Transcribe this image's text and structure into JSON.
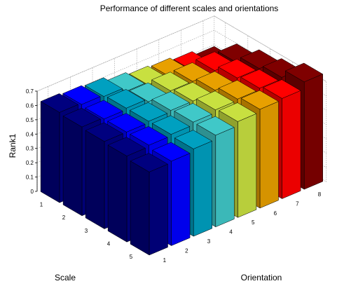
{
  "chart_data": {
    "type": "bar",
    "title": "Performance of different scales and orientations",
    "zlabel": "Rank1",
    "xlabel": "Orientation",
    "ylabel": "Scale",
    "zlim": [
      0,
      0.7
    ],
    "z_ticks": [
      "0",
      "0.1",
      "0.2",
      "0.3",
      "0.4",
      "0.5",
      "0.6",
      "0.7"
    ],
    "orientations": [
      "1",
      "2",
      "3",
      "4",
      "5",
      "6",
      "7",
      "8"
    ],
    "scales": [
      "1",
      "2",
      "3",
      "4",
      "5"
    ],
    "grid": true,
    "colors": [
      "#00007F",
      "#0000FF",
      "#00A0C0",
      "#40C8C8",
      "#C8E040",
      "#E8A000",
      "#FF0000",
      "#7F0000"
    ],
    "values": [
      [
        0.63,
        0.62,
        0.61,
        0.58,
        0.56,
        0.55,
        0.53,
        0.5
      ],
      [
        0.62,
        0.61,
        0.62,
        0.6,
        0.61,
        0.61,
        0.62,
        0.61
      ],
      [
        0.61,
        0.61,
        0.62,
        0.63,
        0.63,
        0.64,
        0.66,
        0.66
      ],
      [
        0.6,
        0.61,
        0.62,
        0.64,
        0.66,
        0.67,
        0.68,
        0.69
      ],
      [
        0.58,
        0.59,
        0.61,
        0.64,
        0.67,
        0.69,
        0.7,
        0.75
      ]
    ]
  }
}
